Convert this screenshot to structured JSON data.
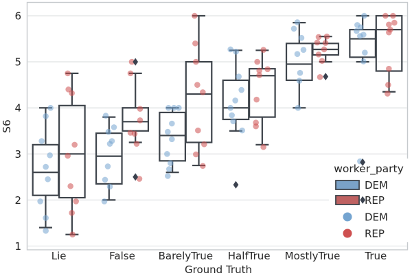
{
  "chart_data": {
    "type": "boxplot_with_strip",
    "xlabel": "Ground Truth",
    "ylabel": "S6",
    "categories": [
      "Lie",
      "False",
      "BarelyTrue",
      "HalfTrue",
      "MostlyTrue",
      "True"
    ],
    "y_ticks": [
      1,
      2,
      3,
      4,
      5,
      6
    ],
    "ylim": [
      0.9,
      6.3
    ],
    "grid": "horizontal",
    "legend": {
      "title": "worker_party",
      "entries": [
        {
          "swatch": "box",
          "party": "DEM",
          "label": "DEM"
        },
        {
          "swatch": "box",
          "party": "REP",
          "label": "REP"
        },
        {
          "swatch": "dot",
          "party": "DEM",
          "label": "DEM"
        },
        {
          "swatch": "dot",
          "party": "REP",
          "label": "REP"
        }
      ]
    },
    "colors": {
      "dem_box": "#7AA2C8",
      "rep_box": "#BF6262",
      "dem_dot": "#74A4D0",
      "rep_dot": "#CE5050",
      "box_edge": "#3E444B",
      "outlier": "#3A414E",
      "grid": "#D9DCDE",
      "spine": "#C6CACD",
      "text": "#262626"
    },
    "groups": [
      {
        "category": "Lie",
        "DEM": {
          "whislo": 1.4,
          "q1": 2.1,
          "med": 2.6,
          "q3": 3.2,
          "whishi": 4.0,
          "outliers": [],
          "points": [
            [
              -12,
              4.0
            ],
            [
              -19,
              3.82
            ],
            [
              -25,
              3.28
            ],
            [
              -13,
              2.97
            ],
            [
              -19,
              2.72
            ],
            [
              -16,
              2.45
            ],
            [
              -27,
              1.97
            ],
            [
              -19,
              1.61
            ],
            [
              -19,
              1.33
            ]
          ]
        },
        "REP": {
          "whislo": 1.25,
          "q1": 2.05,
          "med": 3.0,
          "q3": 4.05,
          "whishi": 4.75,
          "outliers": [],
          "points": [
            [
              13,
              4.75
            ],
            [
              14,
              4.4
            ],
            [
              19,
              4.32
            ],
            [
              23,
              3.2
            ],
            [
              13,
              2.96
            ],
            [
              17,
              2.3
            ],
            [
              25,
              1.97
            ],
            [
              19,
              1.72
            ],
            [
              20,
              1.25
            ]
          ]
        }
      },
      {
        "category": "False",
        "DEM": {
          "whislo": 2.0,
          "q1": 2.35,
          "med": 2.95,
          "q3": 3.45,
          "whishi": 3.8,
          "outliers": [],
          "points": [
            [
              -24,
              3.83
            ],
            [
              -12,
              3.58
            ],
            [
              -20,
              3.48
            ],
            [
              -15,
              3.28
            ],
            [
              -18,
              3.22
            ],
            [
              -21,
              2.73
            ],
            [
              -25,
              2.44
            ],
            [
              -18,
              2.29
            ],
            [
              -26,
              1.97
            ]
          ]
        },
        "REP": {
          "whislo": 3.25,
          "q1": 3.5,
          "med": 3.7,
          "q3": 4.0,
          "whishi": 4.75,
          "outliers": [
            5.0,
            2.5
          ],
          "points": [
            [
              14,
              5.0
            ],
            [
              12,
              4.75
            ],
            [
              26,
              3.98
            ],
            [
              26,
              3.73
            ],
            [
              12,
              3.46
            ],
            [
              18,
              3.44
            ],
            [
              21,
              3.22
            ],
            [
              25,
              2.46
            ]
          ]
        }
      },
      {
        "category": "BarelyTrue",
        "DEM": {
          "whislo": 2.6,
          "q1": 2.85,
          "med": 3.4,
          "q3": 3.9,
          "whishi": 4.0,
          "outliers": [],
          "points": [
            [
              -25,
              4.0
            ],
            [
              -17,
              4.0
            ],
            [
              -10,
              4.0
            ],
            [
              -20,
              3.66
            ],
            [
              -26,
              3.48
            ],
            [
              -20,
              3.32
            ],
            [
              -27,
              3.0
            ],
            [
              -22,
              2.8
            ],
            [
              -24,
              2.67
            ],
            [
              -26,
              2.52
            ]
          ]
        },
        "REP": {
          "whislo": 2.75,
          "q1": 3.25,
          "med": 4.3,
          "q3": 5.0,
          "whishi": 6.0,
          "outliers": [],
          "points": [
            [
              13,
              6.0
            ],
            [
              14,
              5.4
            ],
            [
              15,
              5.0
            ],
            [
              17,
              4.5
            ],
            [
              25,
              4.34
            ],
            [
              18,
              3.51
            ],
            [
              27,
              3.21
            ],
            [
              15,
              2.99
            ],
            [
              25,
              2.74
            ]
          ]
        }
      },
      {
        "category": "HalfTrue",
        "DEM": {
          "whislo": 3.5,
          "q1": 3.75,
          "med": 4.0,
          "q3": 4.6,
          "whishi": 5.25,
          "outliers": [
            2.33
          ],
          "points": [
            [
              -27,
              5.27
            ],
            [
              -19,
              5.22
            ],
            [
              -15,
              4.68
            ],
            [
              -11,
              4.39
            ],
            [
              -20,
              4.16
            ],
            [
              -27,
              4.0
            ],
            [
              -25,
              3.84
            ],
            [
              -23,
              3.71
            ],
            [
              -10,
              3.51
            ]
          ]
        },
        "REP": {
          "whislo": 3.2,
          "q1": 3.8,
          "med": 4.7,
          "q3": 4.85,
          "whishi": 5.25,
          "outliers": [],
          "points": [
            [
              21,
              5.26
            ],
            [
              12,
              5.0
            ],
            [
              27,
              4.84
            ],
            [
              15,
              4.81
            ],
            [
              15,
              4.71
            ],
            [
              11,
              4.18
            ],
            [
              10,
              3.68
            ],
            [
              10,
              3.6
            ],
            [
              21,
              3.15
            ]
          ]
        }
      },
      {
        "category": "MostlyTrue",
        "DEM": {
          "whislo": 4.0,
          "q1": 4.6,
          "med": 4.95,
          "q3": 5.4,
          "whishi": 5.85,
          "outliers": [],
          "points": [
            [
              -22,
              5.86
            ],
            [
              -27,
              5.72
            ],
            [
              -16,
              5.52
            ],
            [
              -13,
              5.26
            ],
            [
              -22,
              5.17
            ],
            [
              -18,
              4.76
            ],
            [
              -19,
              4.59
            ],
            [
              -21,
              4.0
            ]
          ]
        },
        "REP": {
          "whislo": 5.0,
          "q1": 5.15,
          "med": 5.27,
          "q3": 5.4,
          "whishi": 5.55,
          "outliers": [
            4.68
          ],
          "points": [
            [
              9,
              5.54
            ],
            [
              21,
              5.55
            ],
            [
              7,
              5.42
            ],
            [
              19,
              5.41
            ],
            [
              17,
              5.27
            ],
            [
              9,
              5.16
            ],
            [
              14,
              5.02
            ],
            [
              11,
              4.67
            ]
          ]
        }
      },
      {
        "category": "True",
        "DEM": {
          "whislo": 5.0,
          "q1": 5.1,
          "med": 5.5,
          "q3": 5.7,
          "whishi": 6.0,
          "outliers": [
            2.82,
            2.0
          ],
          "points": [
            [
              -17,
              6.0
            ],
            [
              -27,
              5.8
            ],
            [
              -22,
              5.75
            ],
            [
              -28,
              5.67
            ],
            [
              -18,
              5.59
            ],
            [
              -23,
              5.56
            ],
            [
              -16,
              5.2
            ],
            [
              -18,
              5.01
            ],
            [
              -23,
              2.84
            ]
          ]
        },
        "REP": {
          "whislo": 4.35,
          "q1": 4.8,
          "med": 5.7,
          "q3": 6.0,
          "whishi": 6.0,
          "outliers": [],
          "points": [
            [
              14,
              6.0
            ],
            [
              25,
              6.0
            ],
            [
              27,
              5.85
            ],
            [
              19,
              5.81
            ],
            [
              21,
              5.7
            ],
            [
              19,
              5.64
            ],
            [
              19,
              4.85
            ],
            [
              18,
              4.5
            ],
            [
              17,
              4.31
            ]
          ]
        }
      }
    ]
  }
}
